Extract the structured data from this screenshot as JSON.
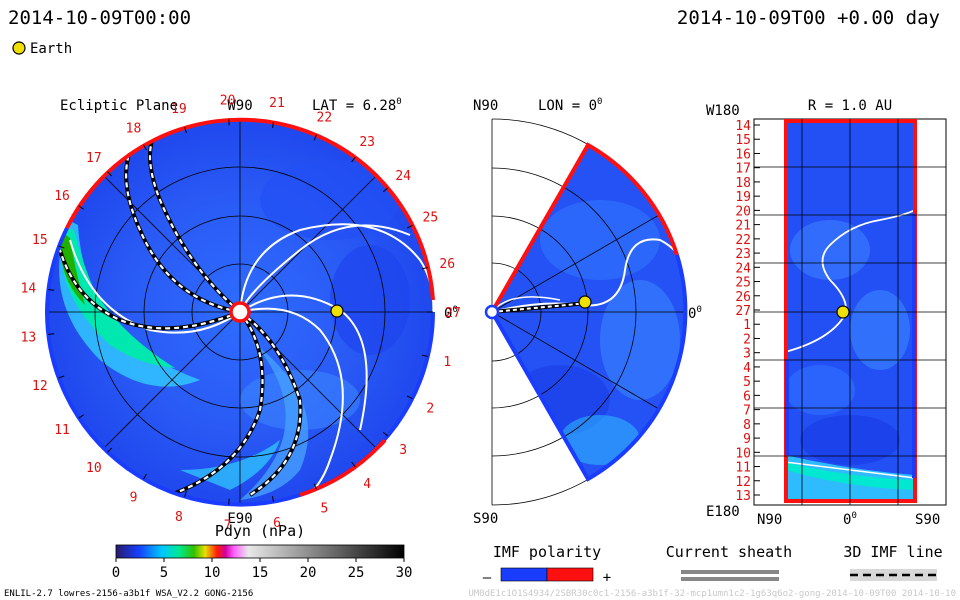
{
  "header": {
    "left_time": "2014-10-09T00:00",
    "right_time": "2014-10-09T00 +0.00 day",
    "earth_legend": "Earth"
  },
  "colors": {
    "background": "#1040f0",
    "positive_polarity": "#ff1010",
    "negative_polarity": "#1a3cff",
    "tick_text": "#dd1111",
    "earth": "#f0e000"
  },
  "chart_data": [
    {
      "type": "heatmap",
      "panel": "ecliptic",
      "title": "Ecliptic Plane",
      "top_label": "W90",
      "bottom_label": "E90",
      "right_label": "0",
      "right_label_sup": "0",
      "lat_label": "LAT = 6.28",
      "lat_sup": "0",
      "rim_ticks": [
        "14",
        "15",
        "16",
        "17",
        "18",
        "19",
        "20",
        "21",
        "22",
        "23",
        "24",
        "25",
        "26",
        "27",
        "1",
        "2",
        "3",
        "4",
        "5",
        "6",
        "7",
        "8",
        "9",
        "10",
        "11",
        "12",
        "13"
      ],
      "earth_radius_au": 1.0,
      "earth_longitude_deg": 0
    },
    {
      "type": "heatmap",
      "panel": "meridional",
      "top_label": "N90",
      "bottom_label": "S90",
      "lon_label": "LON = 0",
      "lon_sup": "0",
      "right_label": "0",
      "right_label_sup": "0",
      "lat_range_deg": [
        -60,
        60
      ]
    },
    {
      "type": "heatmap",
      "panel": "sphere",
      "title": "R = 1.0 AU",
      "top_label": "W180",
      "bottom_label": "E180",
      "x_labels": [
        "N90",
        "0",
        "S90"
      ],
      "x_zero_sup": "0",
      "y_ticks": [
        "14",
        "15",
        "16",
        "17",
        "18",
        "19",
        "20",
        "21",
        "22",
        "23",
        "24",
        "25",
        "26",
        "27",
        "1",
        "2",
        "3",
        "4",
        "5",
        "6",
        "7",
        "8",
        "9",
        "10",
        "11",
        "12",
        "13"
      ]
    }
  ],
  "colorbar": {
    "label": "Pdyn (nPa)",
    "min": 0,
    "max": 30,
    "ticks": [
      "0",
      "5",
      "10",
      "15",
      "20",
      "25",
      "30"
    ]
  },
  "legends": {
    "imf_polarity": "IMF polarity",
    "minus": "–",
    "plus": "+",
    "current_sheath": "Current sheath",
    "imf_line_3d": "3D IMF line"
  },
  "footer": {
    "left": "ENLIL-2.7 lowres-2156-a3b1f WSA_V2.2 GONG-2156",
    "right": "UM0dE1c1O1S4934/2SBR30c0c1-2156-a3b1f-32-mcp1umn1c2-1g63q6o2-gong-2014-10-09T00 2014-10-10"
  }
}
